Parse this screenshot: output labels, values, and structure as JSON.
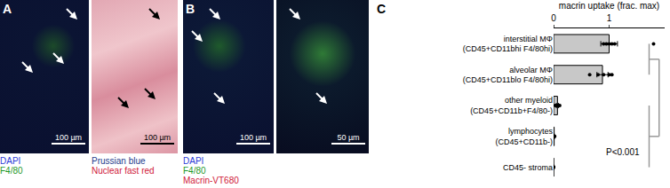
{
  "panels": [
    {
      "label": "A",
      "images": [
        {
          "legend": [
            {
              "text": "DAPI",
              "color": "#2b3bd6"
            },
            {
              "text": "F4/80",
              "color": "#1f9a2a"
            }
          ],
          "scale_bar": "100 µm"
        },
        {
          "legend": [
            {
              "text": "Prussian blue",
              "color": "#243c8c"
            },
            {
              "text": "Nuclear fast red",
              "color": "#d0203a"
            }
          ],
          "scale_bar": "100 µm"
        }
      ]
    },
    {
      "label": "B",
      "images": [
        {
          "legend": [
            {
              "text": "DAPI",
              "color": "#2b3bd6"
            },
            {
              "text": "F4/80",
              "color": "#1f9a2a"
            },
            {
              "text": "Macrin-VT680",
              "color": "#d0203a"
            }
          ],
          "scale_bar": "100 µm"
        },
        {
          "scale_bar": "50 µm"
        }
      ]
    }
  ],
  "chart_data": {
    "label": "C",
    "type": "bar",
    "orientation": "horizontal",
    "xlabel": "macrin uptake (frac. max)",
    "categories": [
      "interstitial MΦ (CD45+CD11bhi F4/80hi)",
      "alveolar MΦ (CD45+CD11blo F4/80hi)",
      "other myeloid (CD45+CD11b+F4/80-)",
      "lymphocytes (CD45+CD11b-)",
      "CD45- stroma"
    ],
    "values": [
      1.0,
      0.88,
      0.07,
      0.01,
      0
    ],
    "errors": [
      0.15,
      0.1,
      0.02,
      0.005,
      0
    ],
    "points": [
      [
        0.9,
        0.95,
        1.0,
        1.05,
        1.1,
        1.8
      ],
      [
        0.65,
        0.8,
        0.9,
        1.0,
        1.05
      ],
      [
        0.03,
        0.05,
        0.07,
        0.09,
        0.11
      ],
      [
        0,
        0.005,
        0.01,
        0.01,
        0.02
      ],
      [
        0,
        0,
        0,
        0,
        0,
        0
      ]
    ],
    "color": "#c8c8c8",
    "marker": "circle",
    "xlim": [
      0,
      2
    ],
    "xticks": [
      0,
      1
    ],
    "annotations": [
      {
        "text": "P<0.001"
      }
    ]
  }
}
